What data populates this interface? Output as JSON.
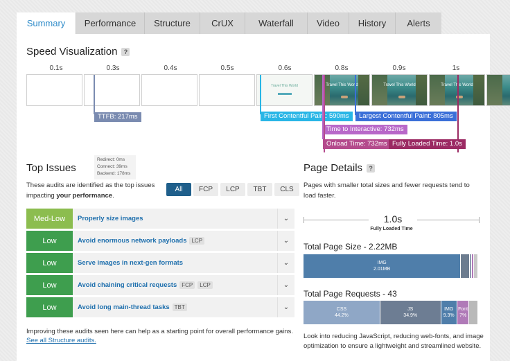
{
  "tabs": [
    "Summary",
    "Performance",
    "Structure",
    "CrUX",
    "Waterfall",
    "Video",
    "History",
    "Alerts"
  ],
  "speed_visualization": {
    "title": "Speed Visualization",
    "help": "?",
    "time_labels": [
      "0.1s",
      "0.3s",
      "0.4s",
      "0.5s",
      "0.6s",
      "0.8s",
      "0.9s",
      "1s"
    ],
    "frame_text": "Travel This World",
    "markers": {
      "ttfb": "TTFB: 217ms",
      "fcp": "First Contentful Paint: 590ms",
      "lcp": "Largest Contentful Paint: 805ms",
      "tti": "Time to Interactive: 732ms",
      "onload": "Onload Time: 732ms",
      "fully_loaded": "Fully Loaded Time: 1.0s"
    },
    "ttfb_details": [
      "Redirect: 0ms",
      "Connect: 39ms",
      "Backend: 178ms"
    ],
    "colors": {
      "ttfb": "#7a8bb0",
      "fcp": "#29b6e6",
      "lcp": "#3b6fd8",
      "tti": "#b868c9",
      "onload": "#b44a8c",
      "fully_loaded": "#9b2a63"
    }
  },
  "top_issues": {
    "title": "Top Issues",
    "desc_prefix": "These audits are identified as the top issues impacting ",
    "desc_bold": "your performance",
    "desc_suffix": ".",
    "filters": [
      "All",
      "FCP",
      "LCP",
      "TBT",
      "CLS"
    ],
    "items": [
      {
        "severity": "Med-Low",
        "title": "Properly size images",
        "badges": []
      },
      {
        "severity": "Low",
        "title": "Avoid enormous network payloads",
        "badges": [
          "LCP"
        ]
      },
      {
        "severity": "Low",
        "title": "Serve images in next-gen formats",
        "badges": []
      },
      {
        "severity": "Low",
        "title": "Avoid chaining critical requests",
        "badges": [
          "FCP",
          "LCP"
        ]
      },
      {
        "severity": "Low",
        "title": "Avoid long main-thread tasks",
        "badges": [
          "TBT"
        ]
      }
    ],
    "footer": "Improving these audits seen here can help as a starting point for overall performance gains.",
    "link": "See all Structure audits."
  },
  "page_details": {
    "title": "Page Details",
    "help": "?",
    "desc": "Pages with smaller total sizes and fewer requests tend to load faster.",
    "fully_loaded_value": "1.0s",
    "fully_loaded_label": "Fully Loaded Time",
    "size_title": "Total Page Size - 2.22MB",
    "size_segments": [
      {
        "label": "IMG",
        "value": "2.01MB",
        "fraction": 0.905,
        "color": "#4f7eaa"
      },
      {
        "label": "",
        "value": "",
        "fraction": 0.05,
        "color": "#6c7c8f"
      },
      {
        "label": "",
        "value": "",
        "fraction": 0.015,
        "color": "#8e9bb0"
      },
      {
        "label": "",
        "value": "",
        "fraction": 0.012,
        "color": "#b07ab8"
      },
      {
        "label": "",
        "value": "",
        "fraction": 0.018,
        "color": "#c9c9c9"
      }
    ],
    "requests_title": "Total Page Requests - 43",
    "request_segments": [
      {
        "label": "CSS",
        "value": "44.2%",
        "fraction": 0.442,
        "color": "#8fa7c6"
      },
      {
        "label": "JS",
        "value": "34.9%",
        "fraction": 0.349,
        "color": "#6d7d93"
      },
      {
        "label": "IMG",
        "value": "9.3%",
        "fraction": 0.093,
        "color": "#4f7eaa"
      },
      {
        "label": "Font",
        "value": "7%",
        "fraction": 0.07,
        "color": "#b07ab8"
      },
      {
        "label": "",
        "value": "",
        "fraction": 0.046,
        "color": "#b9b9b9"
      }
    ],
    "footer": "Look into reducing JavaScript, reducing web-fonts, and image optimization to ensure a lightweight and streamlined website."
  }
}
